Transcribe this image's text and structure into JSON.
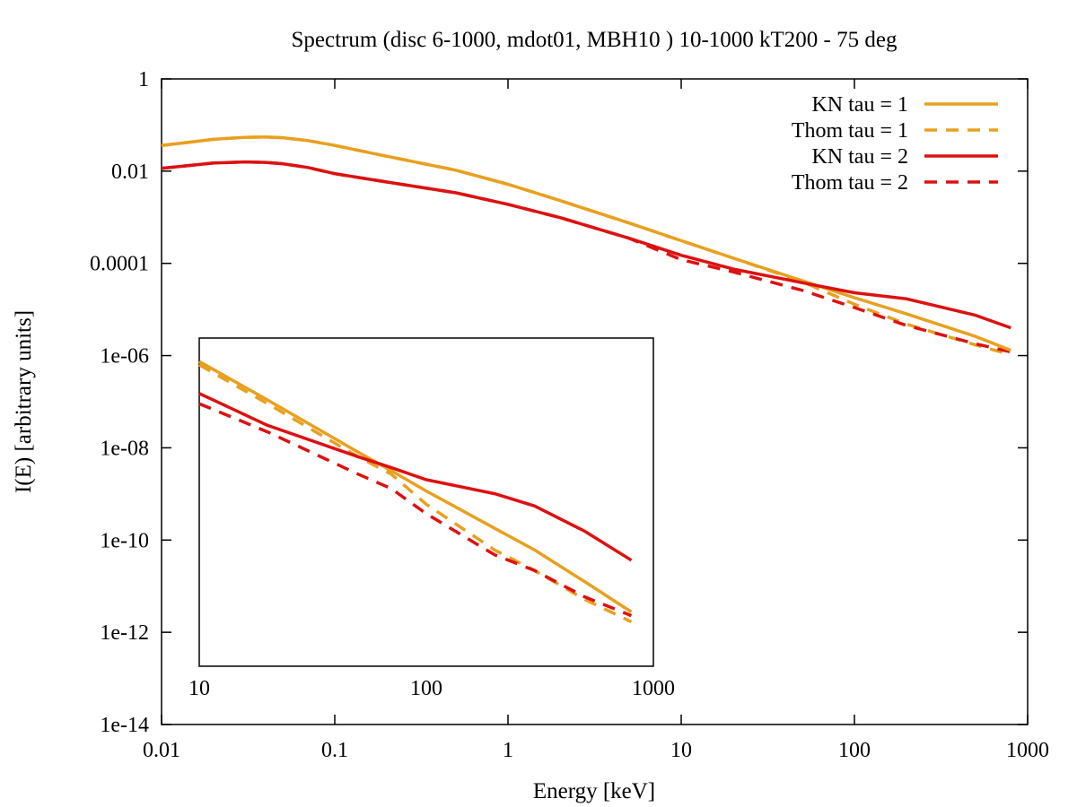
{
  "chart_data": {
    "type": "line",
    "title": "Spectrum (disc 6-1000, mdot01, MBH10 ) 10-1000 kT200 - 75 deg",
    "xlabel": "Energy [keV]",
    "ylabel": "I(E) [arbitrary units]",
    "xscale": "log",
    "yscale": "log",
    "xlim": [
      0.01,
      1000
    ],
    "ylim": [
      1e-14,
      1
    ],
    "xticks": [
      {
        "value": 0.01,
        "label": "0.01"
      },
      {
        "value": 0.1,
        "label": "0.1"
      },
      {
        "value": 1,
        "label": "1"
      },
      {
        "value": 10,
        "label": "10"
      },
      {
        "value": 100,
        "label": "100"
      },
      {
        "value": 1000,
        "label": "1000"
      }
    ],
    "yticks": [
      {
        "value": 1,
        "label": "1"
      },
      {
        "value": 0.01,
        "label": "0.01"
      },
      {
        "value": 0.0001,
        "label": "0.0001"
      },
      {
        "value": 1e-06,
        "label": "1e-06"
      },
      {
        "value": 1e-08,
        "label": "1e-08"
      },
      {
        "value": 1e-10,
        "label": "1e-10"
      },
      {
        "value": 1e-12,
        "label": "1e-12"
      },
      {
        "value": 1e-14,
        "label": "1e-14"
      }
    ],
    "legend_position": "top-right",
    "series": [
      {
        "name": "KN tau = 1",
        "color": "#e8a020",
        "dash": "solid",
        "x": [
          0.01,
          0.015,
          0.02,
          0.03,
          0.04,
          0.05,
          0.07,
          0.1,
          0.2,
          0.5,
          1,
          2,
          5,
          10,
          20,
          50,
          100,
          200,
          500,
          800
        ],
        "y": [
          0.036,
          0.043,
          0.049,
          0.054,
          0.055,
          0.053,
          0.046,
          0.036,
          0.021,
          0.0105,
          0.0052,
          0.0023,
          0.00075,
          0.00031,
          0.00013,
          4.2e-05,
          1.8e-05,
          8e-06,
          2.6e-06,
          1.3e-06
        ]
      },
      {
        "name": "Thom tau = 1",
        "color": "#e8a020",
        "dash": "dashed",
        "x": [
          0.01,
          0.015,
          0.02,
          0.03,
          0.04,
          0.05,
          0.07,
          0.1,
          0.2,
          0.5,
          1,
          2,
          5,
          10,
          20,
          50,
          100,
          200,
          500,
          800
        ],
        "y": [
          0.036,
          0.043,
          0.049,
          0.054,
          0.055,
          0.053,
          0.046,
          0.036,
          0.021,
          0.0105,
          0.0052,
          0.0023,
          0.00075,
          0.00031,
          0.00013,
          4e-05,
          1.3e-05,
          4.8e-06,
          1.7e-06,
          1.05e-06
        ]
      },
      {
        "name": "KN tau = 2",
        "color": "#dd1111",
        "dash": "solid",
        "x": [
          0.01,
          0.015,
          0.02,
          0.03,
          0.04,
          0.05,
          0.07,
          0.1,
          0.2,
          0.5,
          1,
          2,
          5,
          10,
          20,
          50,
          100,
          200,
          500,
          800
        ],
        "y": [
          0.0115,
          0.0135,
          0.015,
          0.0158,
          0.0155,
          0.0145,
          0.012,
          0.0088,
          0.0058,
          0.0034,
          0.0019,
          0.00098,
          0.00035,
          0.00015,
          7.5e-05,
          3.8e-05,
          2.3e-05,
          1.7e-05,
          7.5e-06,
          4e-06
        ]
      },
      {
        "name": "Thom tau = 2",
        "color": "#dd1111",
        "dash": "dashed",
        "x": [
          0.01,
          0.015,
          0.02,
          0.03,
          0.04,
          0.05,
          0.07,
          0.1,
          0.2,
          0.5,
          1,
          2,
          5,
          10,
          20,
          50,
          100,
          200,
          500,
          800
        ],
        "y": [
          0.0115,
          0.0135,
          0.015,
          0.0158,
          0.0155,
          0.0145,
          0.012,
          0.0088,
          0.0058,
          0.0034,
          0.0019,
          0.00098,
          0.00035,
          0.00012,
          6.5e-05,
          2.6e-05,
          1.1e-05,
          4.5e-06,
          1.8e-06,
          1.2e-06
        ]
      }
    ],
    "inset": {
      "xscale": "log",
      "xlim": [
        10,
        1000
      ],
      "xticks": [
        {
          "value": 10,
          "label": "10"
        },
        {
          "value": 100,
          "label": "100"
        },
        {
          "value": 1000,
          "label": "1000"
        }
      ],
      "series": [
        {
          "name": "KN tau = 1",
          "color": "#e8a020",
          "dash": "solid",
          "x": [
            10,
            20,
            50,
            70,
            100,
            200,
            300,
            500,
            800
          ],
          "y": [
            0.0003,
            0.00013,
            4.2e-05,
            2.8e-05,
            1.8e-05,
            8e-06,
            5e-06,
            2.5e-06,
            1.3e-06
          ]
        },
        {
          "name": "Thom tau = 1",
          "color": "#e8a020",
          "dash": "dashed",
          "x": [
            10,
            20,
            50,
            70,
            100,
            200,
            300,
            500,
            800
          ],
          "y": [
            0.00028,
            0.00012,
            3.8e-05,
            2.6e-05,
            1.35e-05,
            5e-06,
            3.2e-06,
            1.7e-06,
            1.05e-06
          ]
        },
        {
          "name": "KN tau = 2",
          "color": "#dd1111",
          "dash": "solid",
          "x": [
            10,
            20,
            50,
            70,
            100,
            200,
            300,
            500,
            800
          ],
          "y": [
            0.00015,
            7.5e-05,
            3.8e-05,
            3e-05,
            2.3e-05,
            1.7e-05,
            1.3e-05,
            7.5e-06,
            4e-06
          ]
        },
        {
          "name": "Thom tau = 2",
          "color": "#dd1111",
          "dash": "dashed",
          "x": [
            10,
            20,
            50,
            70,
            100,
            200,
            300,
            500,
            800
          ],
          "y": [
            0.00012,
            6.5e-05,
            2.6e-05,
            1.9e-05,
            1.1e-05,
            4.5e-06,
            3.2e-06,
            1.8e-06,
            1.2e-06
          ]
        }
      ]
    }
  }
}
